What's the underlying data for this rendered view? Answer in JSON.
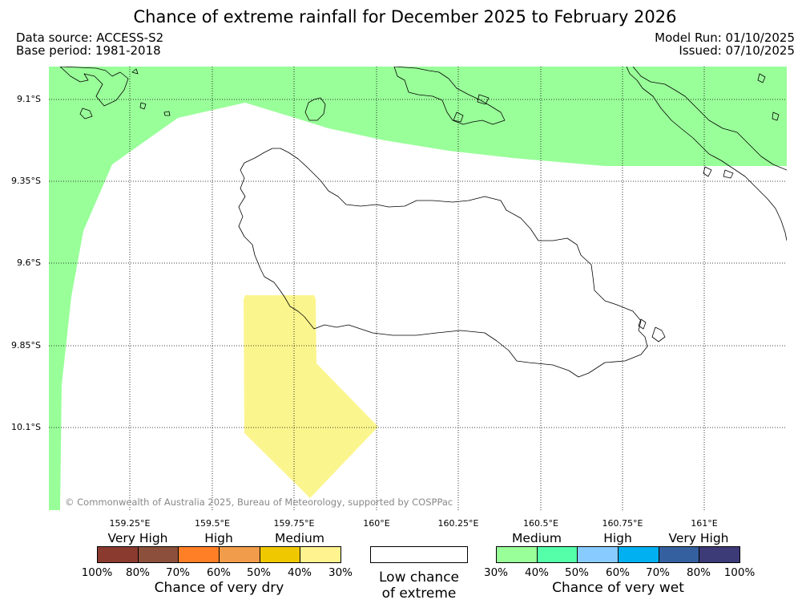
{
  "title": "Chance of extreme rainfall for December 2025 to February 2026",
  "info": {
    "data_source": "Data source: ACCESS-S2",
    "base_period": "Base period: 1981-2018",
    "model_run": "Model Run: 01/10/2025",
    "issued": "Issued: 07/10/2025"
  },
  "map": {
    "lat_labels": [
      "9.1°S",
      "9.35°S",
      "9.6°S",
      "9.85°S",
      "10.1°S"
    ],
    "lon_labels": [
      "159.25°E",
      "159.5°E",
      "159.75°E",
      "160°E",
      "160.25°E",
      "160.5°E",
      "160.75°E",
      "161°E"
    ],
    "copyright": "© Commonwealth of Australia 2025, Bureau of Meteorology, supported by COSPPac",
    "colors": {
      "wet_medium": "#99ff99",
      "dry_medium": "#fbf58e",
      "coastline": "#000000",
      "grid": "#000000"
    }
  },
  "legend": {
    "dry": {
      "headers": [
        "Very High",
        "High",
        "Medium"
      ],
      "ticks": [
        "100%",
        "80%",
        "70%",
        "60%",
        "50%",
        "40%",
        "30%"
      ],
      "caption": "Chance of very dry",
      "colors": [
        "#8b3a30",
        "#8c4f3c",
        "#ff7f27",
        "#f09c4a",
        "#f0c800",
        "#fff38f"
      ]
    },
    "neutral": {
      "caption_line1": "Low chance",
      "caption_line2": "of extreme"
    },
    "wet": {
      "headers": [
        "Medium",
        "High",
        "Very High"
      ],
      "ticks": [
        "30%",
        "40%",
        "50%",
        "60%",
        "70%",
        "80%",
        "100%"
      ],
      "caption": "Chance of very wet",
      "colors": [
        "#99ff99",
        "#55ffaa",
        "#88ccff",
        "#00b0f0",
        "#3560a0",
        "#3d3a78"
      ]
    }
  }
}
